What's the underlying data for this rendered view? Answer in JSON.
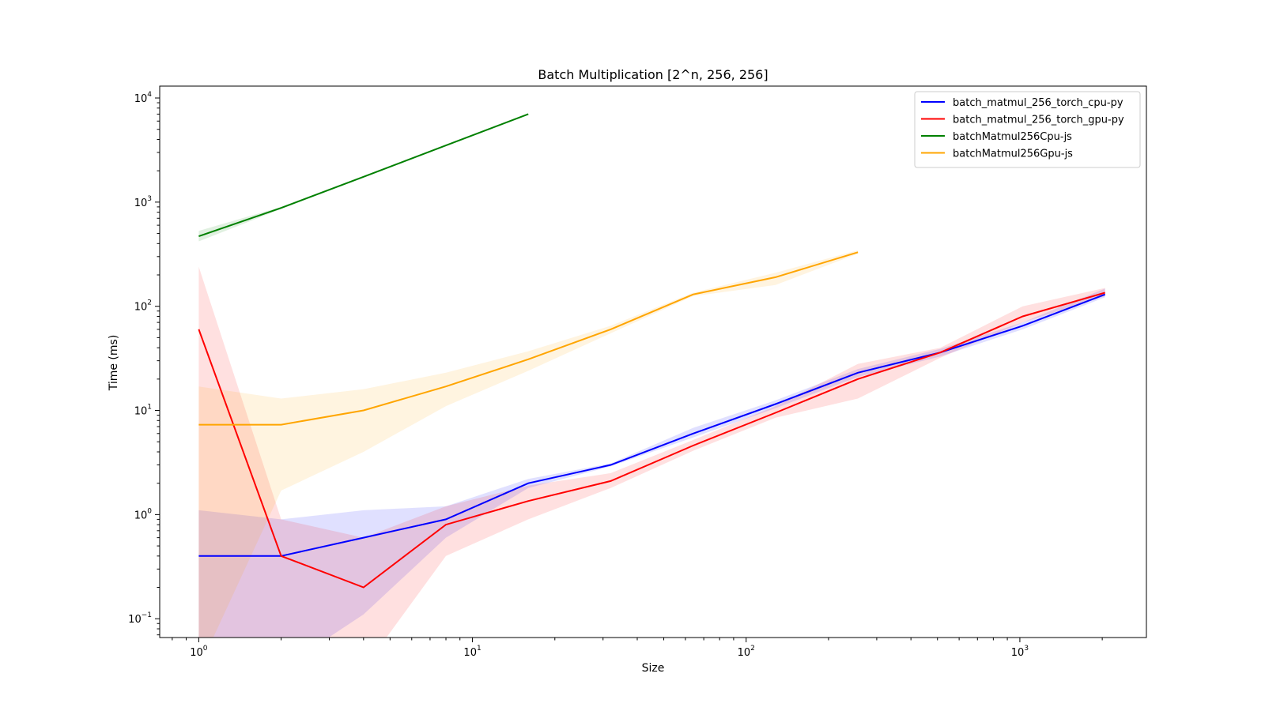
{
  "chart_data": {
    "type": "line",
    "title": "Batch Multiplication [2^n, 256, 256]",
    "xlabel": "Size",
    "ylabel": "Time (ms)",
    "xscale": "log",
    "yscale": "log",
    "xlim": [
      0.72,
      2900
    ],
    "ylim": [
      0.066,
      13000
    ],
    "grid": false,
    "legend_position": "top-right",
    "x_tick_labels": [
      {
        "base": "10",
        "exp": "0",
        "value": 1
      },
      {
        "base": "10",
        "exp": "1",
        "value": 10
      },
      {
        "base": "10",
        "exp": "2",
        "value": 100
      },
      {
        "base": "10",
        "exp": "3",
        "value": 1000
      }
    ],
    "y_tick_labels": [
      {
        "base": "10",
        "exp": "−1",
        "value": 0.1
      },
      {
        "base": "10",
        "exp": "0",
        "value": 1
      },
      {
        "base": "10",
        "exp": "1",
        "value": 10
      },
      {
        "base": "10",
        "exp": "2",
        "value": 100
      },
      {
        "base": "10",
        "exp": "3",
        "value": 1000
      },
      {
        "base": "10",
        "exp": "4",
        "value": 10000
      }
    ],
    "series": [
      {
        "name": "batch_matmul_256_torch_cpu-py",
        "color": "#0000ff",
        "x": [
          1,
          2,
          4,
          8,
          16,
          32,
          64,
          128,
          256,
          512,
          1024,
          2048
        ],
        "y": [
          0.4,
          0.4,
          0.6,
          0.9,
          2.0,
          3.0,
          6.0,
          11.5,
          23,
          36,
          65,
          130
        ],
        "lower": [
          0.01,
          0.01,
          0.11,
          0.6,
          1.8,
          2.9,
          5.5,
          10.5,
          21,
          33,
          60,
          122
        ],
        "upper": [
          1.1,
          0.9,
          1.1,
          1.2,
          2.2,
          3.1,
          6.8,
          12.5,
          25,
          39,
          70,
          148
        ]
      },
      {
        "name": "batch_matmul_256_torch_gpu-py",
        "color": "#ff0000",
        "x": [
          1,
          2,
          4,
          8,
          16,
          32,
          64,
          128,
          256,
          512,
          1024,
          2048
        ],
        "y": [
          60,
          0.4,
          0.2,
          0.8,
          1.35,
          2.1,
          4.6,
          9.5,
          20,
          36,
          80,
          135
        ],
        "lower": [
          0.01,
          0.01,
          0.01,
          0.4,
          0.9,
          1.8,
          4.1,
          8.5,
          13,
          32,
          70,
          125
        ],
        "upper": [
          240,
          0.9,
          0.6,
          1.2,
          1.9,
          2.5,
          5.2,
          11,
          28,
          40,
          100,
          150
        ]
      },
      {
        "name": "batchMatmul256Cpu-js",
        "color": "#008000",
        "x": [
          1,
          2,
          4,
          8,
          16
        ],
        "y": [
          470,
          880,
          1750,
          3500,
          7000
        ],
        "lower": [
          420,
          860,
          1720,
          3450,
          6900
        ],
        "upper": [
          530,
          900,
          1780,
          3550,
          7100
        ]
      },
      {
        "name": "batchMatmul256Gpu-js",
        "color": "#ffa500",
        "x": [
          1,
          2,
          4,
          8,
          16,
          32,
          64,
          128,
          256
        ],
        "y": [
          7.3,
          7.3,
          10,
          17,
          31,
          60,
          130,
          190,
          330
        ],
        "lower": [
          0.01,
          1.7,
          4.0,
          11,
          24,
          55,
          125,
          160,
          320
        ],
        "upper": [
          17,
          13,
          16,
          23,
          37,
          65,
          135,
          210,
          345
        ]
      }
    ]
  }
}
